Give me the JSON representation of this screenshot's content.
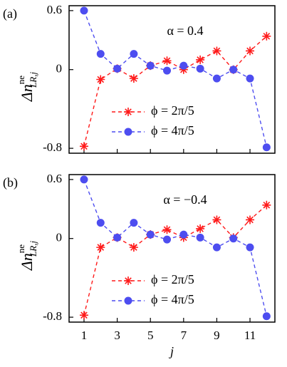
{
  "chart_data": [
    {
      "type": "line",
      "panel_label": "(a)",
      "title": "α = 0.4",
      "ylabel": {
        "base": "Δn",
        "sup": "ne",
        "sub": "LR,j"
      },
      "x": [
        1,
        2,
        3,
        4,
        5,
        6,
        7,
        8,
        9,
        10,
        11,
        12
      ],
      "series": [
        {
          "name": "ϕ = 2π/5",
          "color": "#ff1a1a",
          "marker": "asterisk",
          "values": [
            -0.78,
            -0.1,
            0.01,
            -0.09,
            0.04,
            0.09,
            0.0,
            0.1,
            0.19,
            0.0,
            0.19,
            0.34
          ]
        },
        {
          "name": "ϕ = 4π/5",
          "color": "#4d4df0",
          "marker": "circle",
          "values": [
            0.6,
            0.16,
            0.01,
            0.16,
            0.04,
            -0.01,
            0.04,
            0.01,
            -0.09,
            0.0,
            -0.09,
            -0.79
          ]
        }
      ],
      "xlim": [
        0.1,
        12.5
      ],
      "xticks": [
        1,
        3,
        5,
        7,
        9,
        11
      ],
      "ylim": [
        -0.85,
        0.65
      ],
      "yticks": [
        0.6,
        0,
        -0.8
      ]
    },
    {
      "type": "line",
      "panel_label": "(b)",
      "title": "α = −0.4",
      "ylabel": {
        "base": "Δn",
        "sup": "ne",
        "sub": "LR,j"
      },
      "xlabel": "j",
      "x": [
        1,
        2,
        3,
        4,
        5,
        6,
        7,
        8,
        9,
        10,
        11,
        12
      ],
      "series": [
        {
          "name": "ϕ = 2π/5",
          "color": "#ff1a1a",
          "marker": "asterisk",
          "values": [
            -0.78,
            -0.09,
            0.01,
            -0.09,
            0.04,
            0.09,
            0.01,
            0.1,
            0.19,
            0.01,
            0.19,
            0.34
          ]
        },
        {
          "name": "ϕ = 4π/5",
          "color": "#4d4df0",
          "marker": "circle",
          "values": [
            0.6,
            0.16,
            0.01,
            0.16,
            0.04,
            -0.01,
            0.04,
            0.01,
            -0.09,
            0.0,
            -0.09,
            -0.79
          ]
        }
      ],
      "xlim": [
        0.1,
        12.5
      ],
      "xticks": [
        1,
        3,
        5,
        7,
        9,
        11
      ],
      "ylim": [
        -0.85,
        0.65
      ],
      "yticks": [
        0.6,
        0,
        -0.8
      ]
    }
  ]
}
